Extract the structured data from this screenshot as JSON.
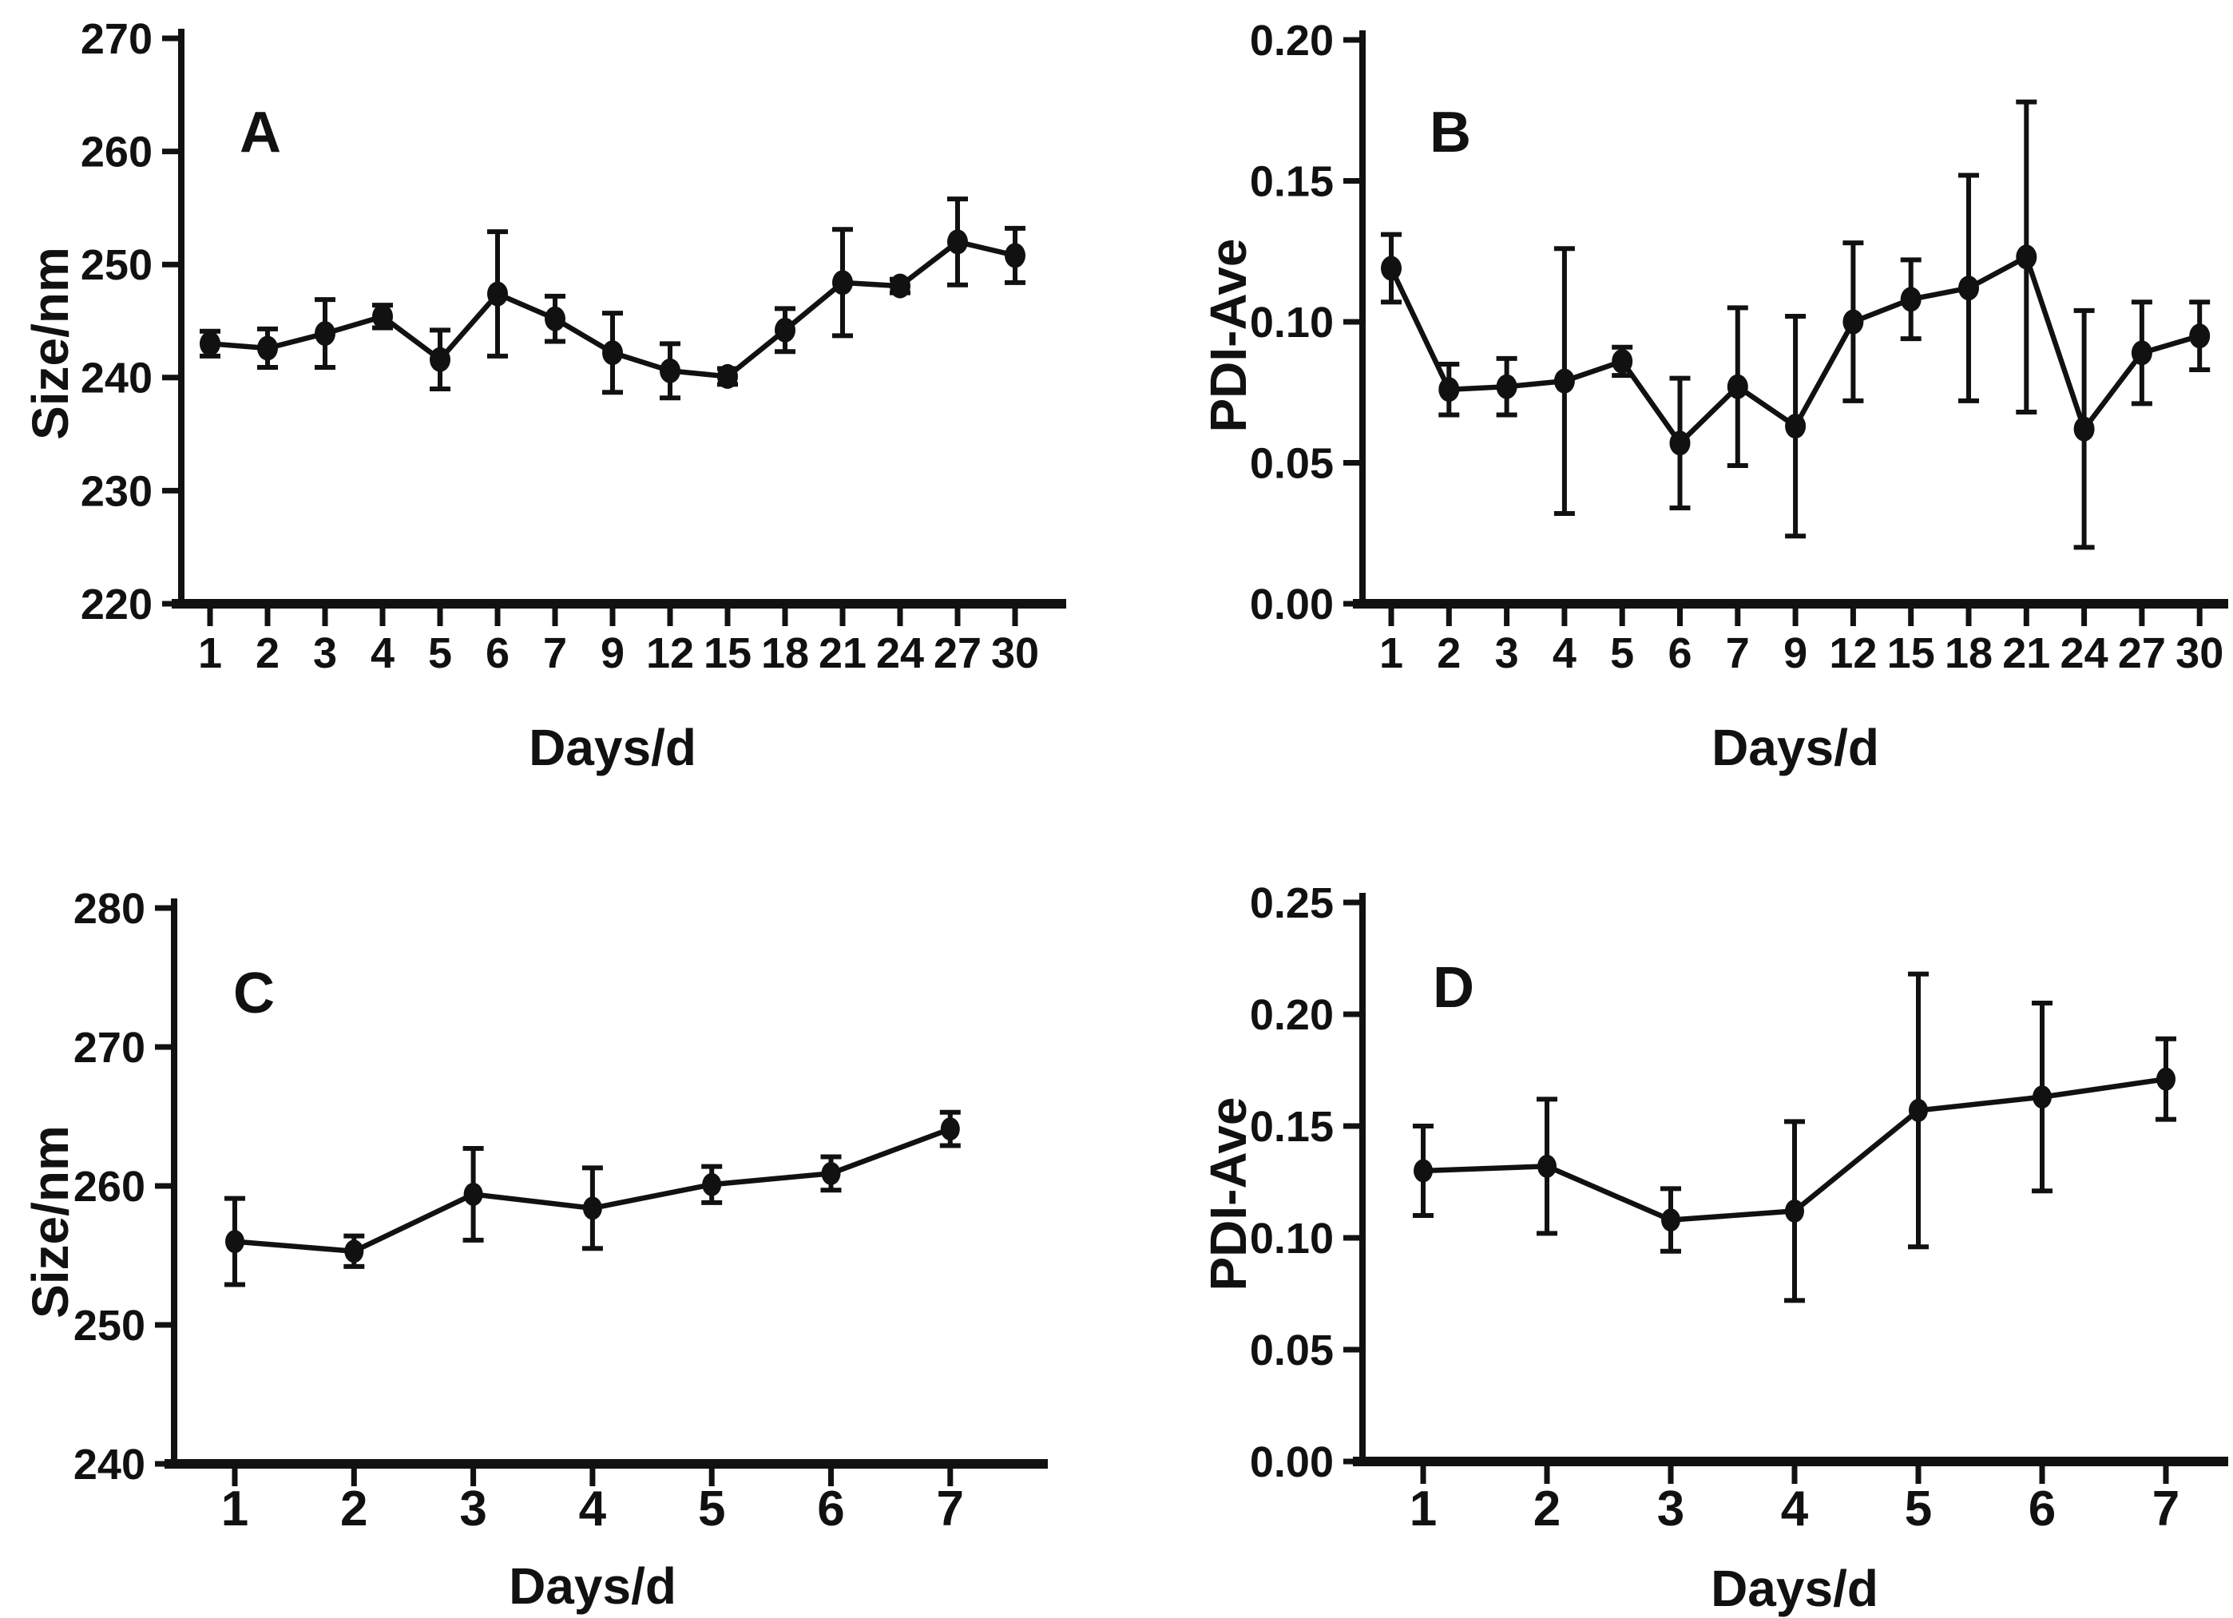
{
  "figure": {
    "background": "#ffffff",
    "ink_color": "#111111",
    "marker_color": "#111111"
  },
  "chart_data": [
    {
      "id": "A",
      "panel_label": "A",
      "type": "line",
      "title": "",
      "xlabel": "Days/d",
      "ylabel": "Size/nm",
      "categories": [
        "1",
        "2",
        "3",
        "4",
        "5",
        "6",
        "7",
        "9",
        "12",
        "15",
        "18",
        "21",
        "24",
        "27",
        "30"
      ],
      "values": [
        243.0,
        242.6,
        243.9,
        245.4,
        241.6,
        247.4,
        245.2,
        242.2,
        240.6,
        240.1,
        244.2,
        248.4,
        248.1,
        252.0,
        250.8
      ],
      "errors": [
        1.1,
        1.7,
        3.0,
        1.0,
        2.6,
        5.5,
        2.0,
        3.5,
        2.4,
        0.7,
        1.9,
        4.7,
        0.6,
        3.8,
        2.4
      ],
      "ylim": [
        220,
        270
      ],
      "yticks": [
        220,
        230,
        240,
        250,
        260,
        270
      ],
      "ytick_decimals": 0,
      "grid": false,
      "legend": "none",
      "error_bars": "both"
    },
    {
      "id": "B",
      "panel_label": "B",
      "type": "line",
      "title": "",
      "xlabel": "Days/d",
      "ylabel": "PDI-Ave",
      "categories": [
        "1",
        "2",
        "3",
        "4",
        "5",
        "6",
        "7",
        "9",
        "12",
        "15",
        "18",
        "21",
        "24",
        "27",
        "30"
      ],
      "values": [
        0.119,
        0.076,
        0.077,
        0.079,
        0.086,
        0.057,
        0.077,
        0.063,
        0.1,
        0.108,
        0.112,
        0.123,
        0.062,
        0.089,
        0.095
      ],
      "errors": [
        0.012,
        0.009,
        0.01,
        0.047,
        0.005,
        0.023,
        0.028,
        0.039,
        0.028,
        0.014,
        0.04,
        0.055,
        0.042,
        0.018,
        0.012
      ],
      "ylim": [
        0.0,
        0.2
      ],
      "yticks": [
        0.0,
        0.05,
        0.1,
        0.15,
        0.2
      ],
      "ytick_decimals": 2,
      "grid": false,
      "legend": "none",
      "error_bars": "both"
    },
    {
      "id": "C",
      "panel_label": "C",
      "type": "line",
      "title": "",
      "xlabel": "Days/d",
      "ylabel": "Size/nm",
      "categories": [
        "1",
        "2",
        "3",
        "4",
        "5",
        "6",
        "7"
      ],
      "values": [
        256.0,
        255.3,
        259.4,
        258.4,
        260.1,
        260.9,
        264.1
      ],
      "errors": [
        3.1,
        1.1,
        3.3,
        2.9,
        1.3,
        1.2,
        1.2
      ],
      "ylim": [
        240,
        280
      ],
      "yticks": [
        240,
        250,
        260,
        270,
        280
      ],
      "ytick_decimals": 0,
      "grid": false,
      "legend": "none",
      "error_bars": "both"
    },
    {
      "id": "D",
      "panel_label": "D",
      "type": "line",
      "title": "",
      "xlabel": "Days/d",
      "ylabel": "PDI-Ave",
      "categories": [
        "1",
        "2",
        "3",
        "4",
        "5",
        "6",
        "7"
      ],
      "values": [
        0.13,
        0.132,
        0.108,
        0.112,
        0.157,
        0.163,
        0.171
      ],
      "errors": [
        0.02,
        0.03,
        0.014,
        0.04,
        0.061,
        0.042,
        0.018
      ],
      "ylim": [
        0.0,
        0.25
      ],
      "yticks": [
        0.0,
        0.05,
        0.1,
        0.15,
        0.2,
        0.25
      ],
      "ytick_decimals": 2,
      "grid": false,
      "legend": "none",
      "error_bars": "both"
    }
  ]
}
